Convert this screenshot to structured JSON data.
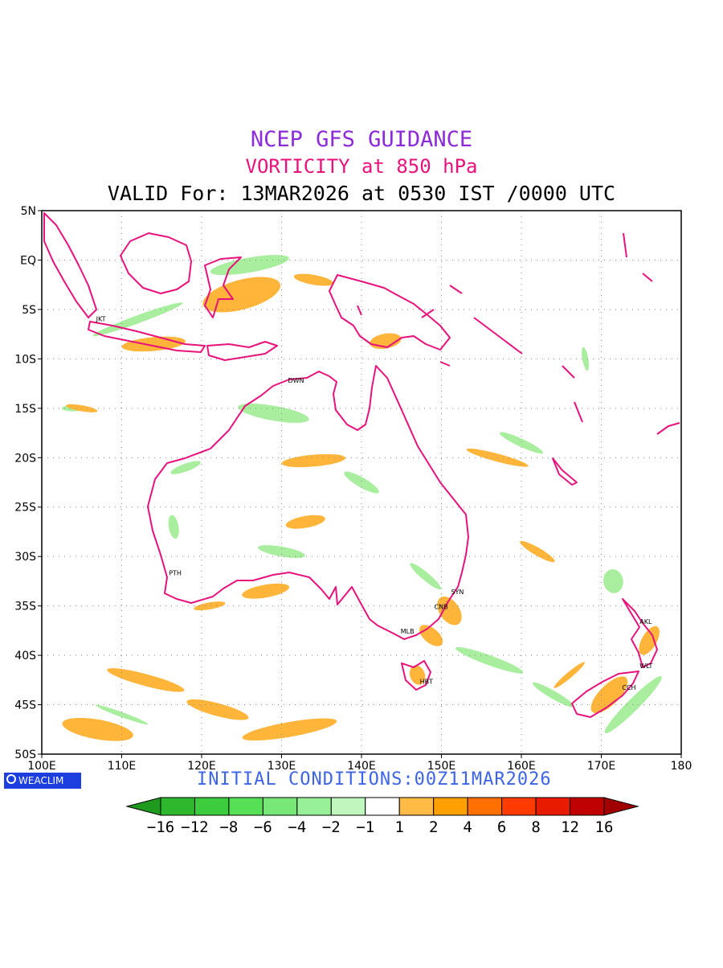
{
  "title": {
    "line1": "NCEP GFS GUIDANCE",
    "line2": "VORTICITY at 850 hPa",
    "line3": "VALID For: 13MAR2026 at 0530 IST /0000 UTC"
  },
  "initial_conditions": "INITIAL CONDITIONS:00Z11MAR2026",
  "logo_text": "WEACLIM",
  "map": {
    "lon_range": [
      100,
      180
    ],
    "lat_range": [
      -50,
      5
    ],
    "lat_labels": [
      "5N",
      "EQ",
      "5S",
      "10S",
      "15S",
      "20S",
      "25S",
      "30S",
      "35S",
      "40S",
      "45S",
      "50S"
    ],
    "lon_labels": [
      "100E",
      "110E",
      "120E",
      "130E",
      "140E",
      "150E",
      "160E",
      "170E",
      "180"
    ],
    "coastline_color": "#e8127c",
    "cities": [
      {
        "code": "JKT",
        "lon": 106.8,
        "lat": -6.2
      },
      {
        "code": "DWN",
        "lon": 130.8,
        "lat": -12.4
      },
      {
        "code": "PTH",
        "lon": 115.9,
        "lat": -31.9
      },
      {
        "code": "SYN",
        "lon": 151.2,
        "lat": -33.8
      },
      {
        "code": "CNB",
        "lon": 149.1,
        "lat": -35.3
      },
      {
        "code": "MLB",
        "lon": 144.9,
        "lat": -37.8
      },
      {
        "code": "HBT",
        "lon": 147.3,
        "lat": -42.9
      },
      {
        "code": "AKL",
        "lon": 174.8,
        "lat": -36.8
      },
      {
        "code": "WLT",
        "lon": 174.8,
        "lat": -41.3
      },
      {
        "code": "CCH",
        "lon": 172.6,
        "lat": -43.5
      }
    ]
  },
  "colorbar": {
    "labels": [
      "−16",
      "−12",
      "−8",
      "−6",
      "−4",
      "−2",
      "−1",
      "1",
      "2",
      "4",
      "6",
      "8",
      "12",
      "16"
    ],
    "colors": [
      "#1e9b1e",
      "#2eb82e",
      "#3dcc3d",
      "#55e055",
      "#77e877",
      "#98f098",
      "#bff7bf",
      "#ffffff",
      "#ffbb44",
      "#ffa000",
      "#ff7000",
      "#ff3b00",
      "#e81a00",
      "#c00000",
      "#a00000"
    ]
  },
  "fields": {
    "positive": [
      {
        "lon": 125,
        "lat": -3.5,
        "len": 10,
        "w": 3,
        "rot": -15
      },
      {
        "lon": 114,
        "lat": -8.5,
        "len": 8,
        "w": 1.4,
        "rot": -5
      },
      {
        "lon": 143,
        "lat": -8.2,
        "len": 4,
        "w": 1.5,
        "rot": -10
      },
      {
        "lon": 134,
        "lat": -20.3,
        "len": 8,
        "w": 1.2,
        "rot": -5
      },
      {
        "lon": 133,
        "lat": -26.5,
        "len": 5,
        "w": 1.2,
        "rot": -10
      },
      {
        "lon": 128,
        "lat": -33.5,
        "len": 6,
        "w": 1.3,
        "rot": -10
      },
      {
        "lon": 121,
        "lat": -35,
        "len": 4,
        "w": 0.7,
        "rot": -10
      },
      {
        "lon": 151,
        "lat": -35.5,
        "len": 4,
        "w": 2,
        "rot": 55
      },
      {
        "lon": 148.7,
        "lat": -38,
        "len": 3.5,
        "w": 1.5,
        "rot": 40
      },
      {
        "lon": 147,
        "lat": -42,
        "len": 2.5,
        "w": 1.5,
        "rot": 70
      },
      {
        "lon": 157,
        "lat": -20,
        "len": 8,
        "w": 0.8,
        "rot": 15
      },
      {
        "lon": 162,
        "lat": -29.5,
        "len": 5,
        "w": 0.8,
        "rot": 30
      },
      {
        "lon": 107,
        "lat": -47.5,
        "len": 9,
        "w": 2,
        "rot": 10
      },
      {
        "lon": 113,
        "lat": -42.5,
        "len": 10,
        "w": 1.2,
        "rot": 15
      },
      {
        "lon": 122,
        "lat": -45.5,
        "len": 8,
        "w": 1.3,
        "rot": 15
      },
      {
        "lon": 131,
        "lat": -47.5,
        "len": 12,
        "w": 1.5,
        "rot": -10
      },
      {
        "lon": 171,
        "lat": -44,
        "len": 6,
        "w": 2,
        "rot": -45
      },
      {
        "lon": 176,
        "lat": -38.5,
        "len": 4,
        "w": 1.5,
        "rot": -60
      },
      {
        "lon": 166,
        "lat": -42,
        "len": 5,
        "w": 0.6,
        "rot": -40
      },
      {
        "lon": 105,
        "lat": -15,
        "len": 4,
        "w": 0.6,
        "rot": 10
      },
      {
        "lon": 134,
        "lat": -2,
        "len": 5,
        "w": 1,
        "rot": 10
      }
    ],
    "negative": [
      {
        "lon": 112,
        "lat": -6,
        "len": 12,
        "w": 0.8,
        "rot": -20
      },
      {
        "lon": 126,
        "lat": -0.5,
        "len": 10,
        "w": 1.5,
        "rot": -10
      },
      {
        "lon": 129,
        "lat": -15.5,
        "len": 9,
        "w": 1.5,
        "rot": 10
      },
      {
        "lon": 140,
        "lat": -22.5,
        "len": 5,
        "w": 1,
        "rot": 30
      },
      {
        "lon": 118,
        "lat": -21,
        "len": 4,
        "w": 0.8,
        "rot": -20
      },
      {
        "lon": 130,
        "lat": -29.5,
        "len": 6,
        "w": 1,
        "rot": 10
      },
      {
        "lon": 148,
        "lat": -32,
        "len": 5,
        "w": 0.8,
        "rot": 40
      },
      {
        "lon": 156,
        "lat": -40.5,
        "len": 9,
        "w": 1,
        "rot": 20
      },
      {
        "lon": 171.5,
        "lat": -32.5,
        "len": 3,
        "w": 2,
        "rot": 80
      },
      {
        "lon": 174,
        "lat": -45,
        "len": 10,
        "w": 1.2,
        "rot": -45
      },
      {
        "lon": 164,
        "lat": -44,
        "len": 6,
        "w": 0.8,
        "rot": 30
      },
      {
        "lon": 104,
        "lat": -15,
        "len": 3,
        "w": 0.6,
        "rot": 0
      },
      {
        "lon": 160,
        "lat": -18.5,
        "len": 6,
        "w": 0.8,
        "rot": 25
      },
      {
        "lon": 116.5,
        "lat": -27,
        "len": 3,
        "w": 1,
        "rot": 80
      },
      {
        "lon": 110,
        "lat": -46,
        "len": 7,
        "w": 0.5,
        "rot": 20
      },
      {
        "lon": 168,
        "lat": -10,
        "len": 3,
        "w": 0.6,
        "rot": 80
      }
    ]
  }
}
